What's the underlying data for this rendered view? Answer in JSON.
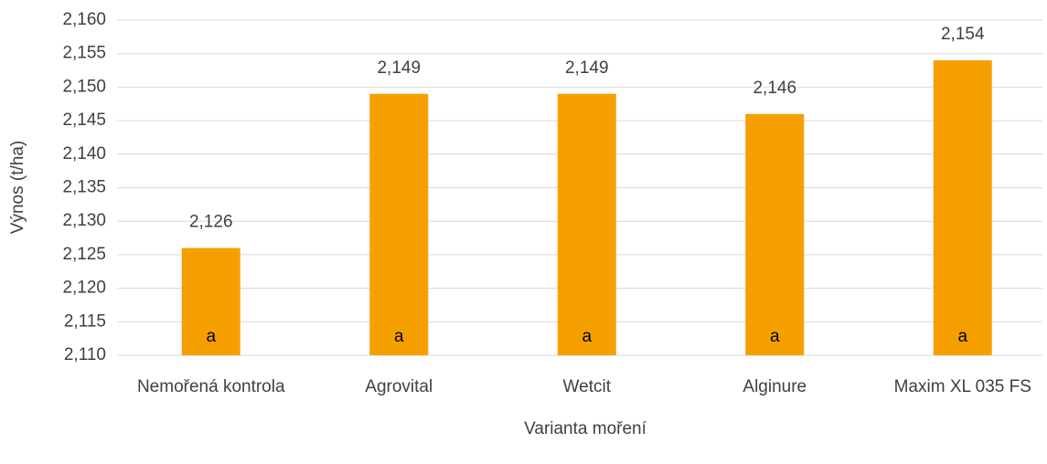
{
  "chart_data": {
    "type": "bar",
    "x_label": "Varianta moření",
    "y_label": "Výnos (t/ha)",
    "categories": [
      "Nemořená kontrola",
      "Agrovital",
      "Wetcit",
      "Alginure",
      "Maxim XL 035 FS"
    ],
    "values": [
      2.126,
      2.149,
      2.149,
      2.146,
      2.154
    ],
    "value_labels": [
      "2,126",
      "2,149",
      "2,149",
      "2,146",
      "2,154"
    ],
    "annotations": [
      "a",
      "a",
      "a",
      "a",
      "a"
    ],
    "color": "#f5a000",
    "ylim": [
      2.11,
      2.16
    ],
    "yticks": [
      {
        "value": 2.11,
        "label": "2,110"
      },
      {
        "value": 2.115,
        "label": "2,115"
      },
      {
        "value": 2.12,
        "label": "2,120"
      },
      {
        "value": 2.125,
        "label": "2,125"
      },
      {
        "value": 2.13,
        "label": "2,130"
      },
      {
        "value": 2.135,
        "label": "2,135"
      },
      {
        "value": 2.14,
        "label": "2,140"
      },
      {
        "value": 2.145,
        "label": "2,145"
      },
      {
        "value": 2.15,
        "label": "2,150"
      },
      {
        "value": 2.155,
        "label": "2,155"
      },
      {
        "value": 2.16,
        "label": "2,160"
      }
    ],
    "grid": true
  }
}
